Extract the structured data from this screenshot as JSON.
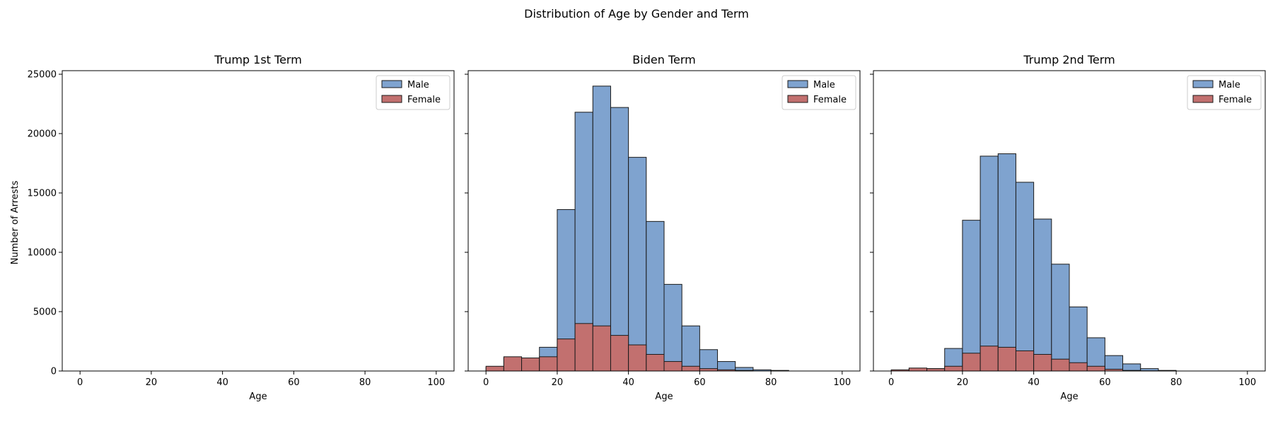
{
  "figure_title": "Distribution of Age by Gender and Term",
  "shared_ylabel": "Number of Arrests",
  "colors": {
    "male": "#7fa3cf",
    "female": "#c2706f",
    "edge": "#1a1a1a"
  },
  "legend_labels": {
    "male": "Male",
    "female": "Female"
  },
  "chart_data": [
    {
      "type": "bar",
      "title": "Trump 1st Term",
      "xlabel": "Age",
      "ylabel": "Number of Arrests",
      "xlim": [
        -5,
        105
      ],
      "ylim": [
        0,
        25300
      ],
      "xticks": [
        0,
        20,
        40,
        60,
        80,
        100
      ],
      "yticks": [
        0,
        5000,
        10000,
        15000,
        20000,
        25000
      ],
      "legend": "top-right",
      "bin_edges": [
        0,
        5,
        10,
        15,
        20,
        25,
        30,
        35,
        40,
        45,
        50,
        55,
        60,
        65,
        70,
        75,
        80,
        85,
        90,
        95,
        100
      ],
      "series": [
        {
          "name": "Male",
          "values": [
            0,
            0,
            0,
            0,
            0,
            0,
            0,
            0,
            0,
            0,
            0,
            0,
            0,
            0,
            0,
            0,
            0,
            0,
            0,
            0
          ]
        },
        {
          "name": "Female",
          "values": [
            0,
            0,
            0,
            0,
            0,
            0,
            0,
            0,
            0,
            0,
            0,
            0,
            0,
            0,
            0,
            0,
            0,
            0,
            0,
            0
          ]
        }
      ]
    },
    {
      "type": "bar",
      "title": "Biden Term",
      "xlabel": "Age",
      "xlim": [
        -5,
        105
      ],
      "ylim": [
        0,
        25300
      ],
      "xticks": [
        0,
        20,
        40,
        60,
        80,
        100
      ],
      "yticks": [
        0,
        5000,
        10000,
        15000,
        20000,
        25000
      ],
      "legend": "top-right",
      "bin_edges": [
        0,
        5,
        10,
        15,
        20,
        25,
        30,
        35,
        40,
        45,
        50,
        55,
        60,
        65,
        70,
        75,
        80,
        85,
        90,
        95,
        100
      ],
      "series": [
        {
          "name": "Male",
          "values": [
            300,
            1100,
            1000,
            2000,
            13600,
            21800,
            24000,
            22200,
            18000,
            12600,
            7300,
            3800,
            1800,
            800,
            300,
            100,
            50,
            0,
            0,
            0
          ]
        },
        {
          "name": "Female",
          "values": [
            400,
            1200,
            1100,
            1200,
            2700,
            4000,
            3800,
            3000,
            2200,
            1400,
            800,
            400,
            200,
            100,
            50,
            0,
            0,
            0,
            0,
            0
          ]
        }
      ]
    },
    {
      "type": "bar",
      "title": "Trump 2nd Term",
      "xlabel": "Age",
      "xlim": [
        -5,
        105
      ],
      "ylim": [
        0,
        25300
      ],
      "xticks": [
        0,
        20,
        40,
        60,
        80,
        100
      ],
      "yticks": [
        0,
        5000,
        10000,
        15000,
        20000,
        25000
      ],
      "legend": "top-right",
      "bin_edges": [
        0,
        5,
        10,
        15,
        20,
        25,
        30,
        35,
        40,
        45,
        50,
        55,
        60,
        65,
        70,
        75,
        80,
        85,
        90,
        95,
        100
      ],
      "series": [
        {
          "name": "Male",
          "values": [
            50,
            200,
            200,
            1900,
            12700,
            18100,
            18300,
            15900,
            12800,
            9000,
            5400,
            2800,
            1300,
            600,
            200,
            50,
            0,
            0,
            0,
            0
          ]
        },
        {
          "name": "Female",
          "values": [
            100,
            250,
            200,
            400,
            1500,
            2100,
            2000,
            1700,
            1400,
            1000,
            700,
            400,
            150,
            50,
            20,
            0,
            0,
            0,
            0,
            0
          ]
        }
      ]
    }
  ]
}
